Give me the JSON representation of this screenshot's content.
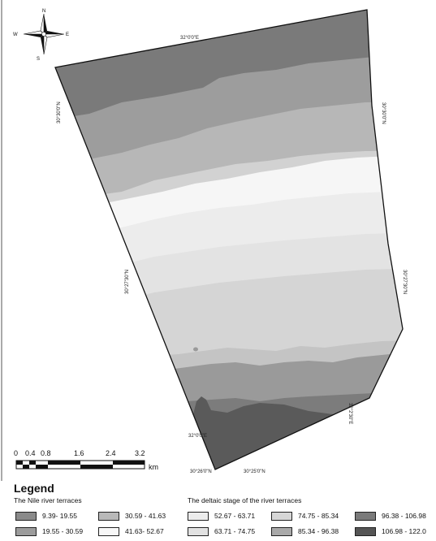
{
  "compass": {
    "north": "N",
    "south": "S",
    "east": "E",
    "west": "W"
  },
  "coordinates": {
    "top_lon": "32°0'0\"E",
    "left_lat_upper": "30°30'0\"N",
    "right_lat_upper": "30°30'0\"N",
    "left_lat_middle": "30°27'30\"N",
    "right_lat_middle": "30°27'30\"N",
    "bottom_lon_left": "32°0'0\"E",
    "right_lon_bottom": "32°2'30\"E",
    "bottom_lat_left": "30°26'0\"N",
    "bottom_lat_right": "30°25'0\"N"
  },
  "scale_bar": {
    "ticks": [
      "0",
      "0.4",
      "0.8",
      "1.6",
      "2.4",
      "3.2"
    ],
    "unit": "km"
  },
  "legend": {
    "title": "Legend",
    "group1_title": "The Nile river terraces",
    "group2_title": "The deltaic stage of the river terraces",
    "items": [
      {
        "label": "9.39- 19.55",
        "color": "#8a8a8a"
      },
      {
        "label": "19.55 - 30.59",
        "color": "#9c9c9c"
      },
      {
        "label": "30.59 - 41.63",
        "color": "#b9b9b9"
      },
      {
        "label": "41.63- 52.67",
        "color": "#f7f7f7"
      },
      {
        "label": "52.67 - 63.71",
        "color": "#ececec"
      },
      {
        "label": "63.71 - 74.75",
        "color": "#e2e2e2"
      },
      {
        "label": "74.75 - 85.34",
        "color": "#d6d6d6"
      },
      {
        "label": "85.34 - 96.38",
        "color": "#a9a9a9"
      },
      {
        "label": "96.38 - 106.98",
        "color": "#7a7a7a"
      },
      {
        "label": "106.98 - 122.0",
        "color": "#555555"
      }
    ]
  }
}
